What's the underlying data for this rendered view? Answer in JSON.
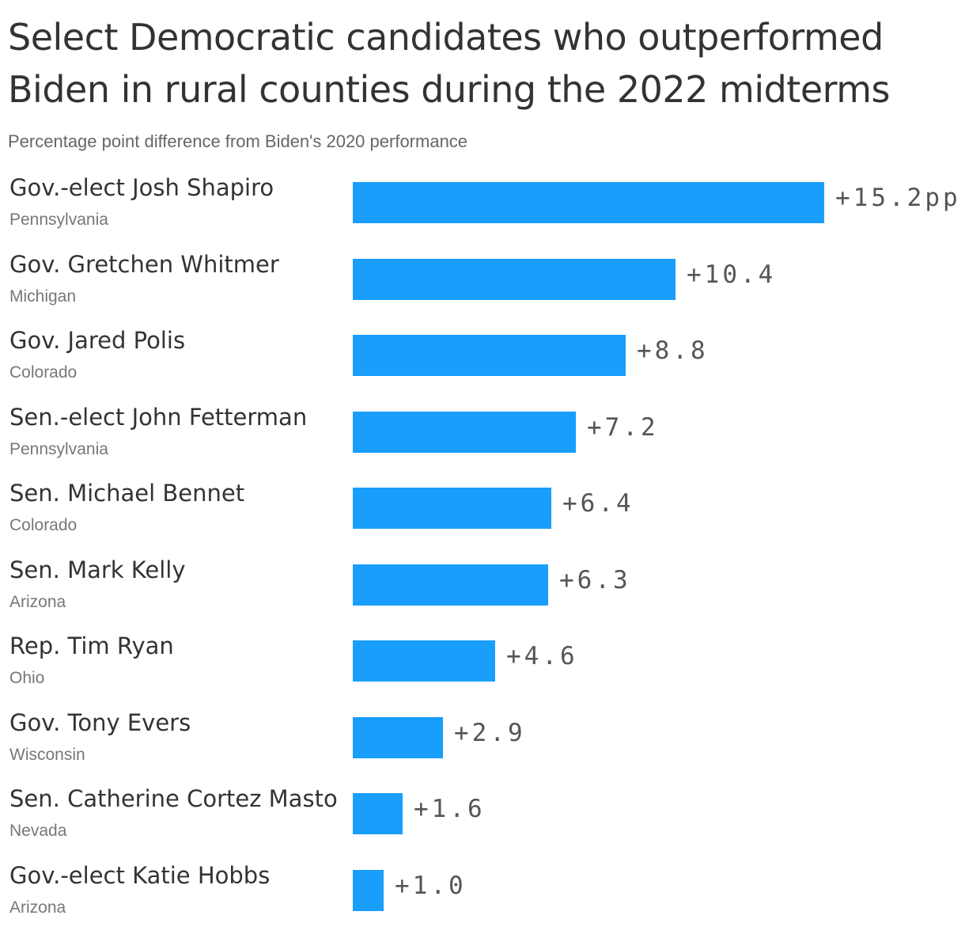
{
  "chart_data": {
    "type": "bar",
    "orientation": "horizontal",
    "title": "Select Democratic candidates who outperformed Biden in rural counties during the 2022 midterms",
    "subtitle": "Percentage point difference from Biden's 2020 performance",
    "categories": [
      "Gov.-elect Josh Shapiro",
      "Gov. Gretchen Whitmer",
      "Gov. Jared Polis",
      "Sen.-elect John Fetterman",
      "Sen. Michael Bennet",
      "Sen. Mark Kelly",
      "Rep. Tim Ryan",
      "Gov. Tony Evers",
      "Sen. Catherine Cortez Masto",
      "Gov.-elect Katie Hobbs"
    ],
    "states": [
      "Pennsylvania",
      "Michigan",
      "Colorado",
      "Pennsylvania",
      "Colorado",
      "Arizona",
      "Ohio",
      "Wisconsin",
      "Nevada",
      "Arizona"
    ],
    "values": [
      15.2,
      10.4,
      8.8,
      7.2,
      6.4,
      6.3,
      4.6,
      2.9,
      1.6,
      1.0
    ],
    "value_labels": [
      "+15.2pp",
      "+10.4",
      "+8.8",
      "+7.2",
      "+6.4",
      "+6.3",
      "+4.6",
      "+2.9",
      "+1.6",
      "+1.0"
    ],
    "xlim": [
      0,
      15.2
    ],
    "grid": false,
    "legend": "none",
    "bar_color": "#199efc"
  }
}
